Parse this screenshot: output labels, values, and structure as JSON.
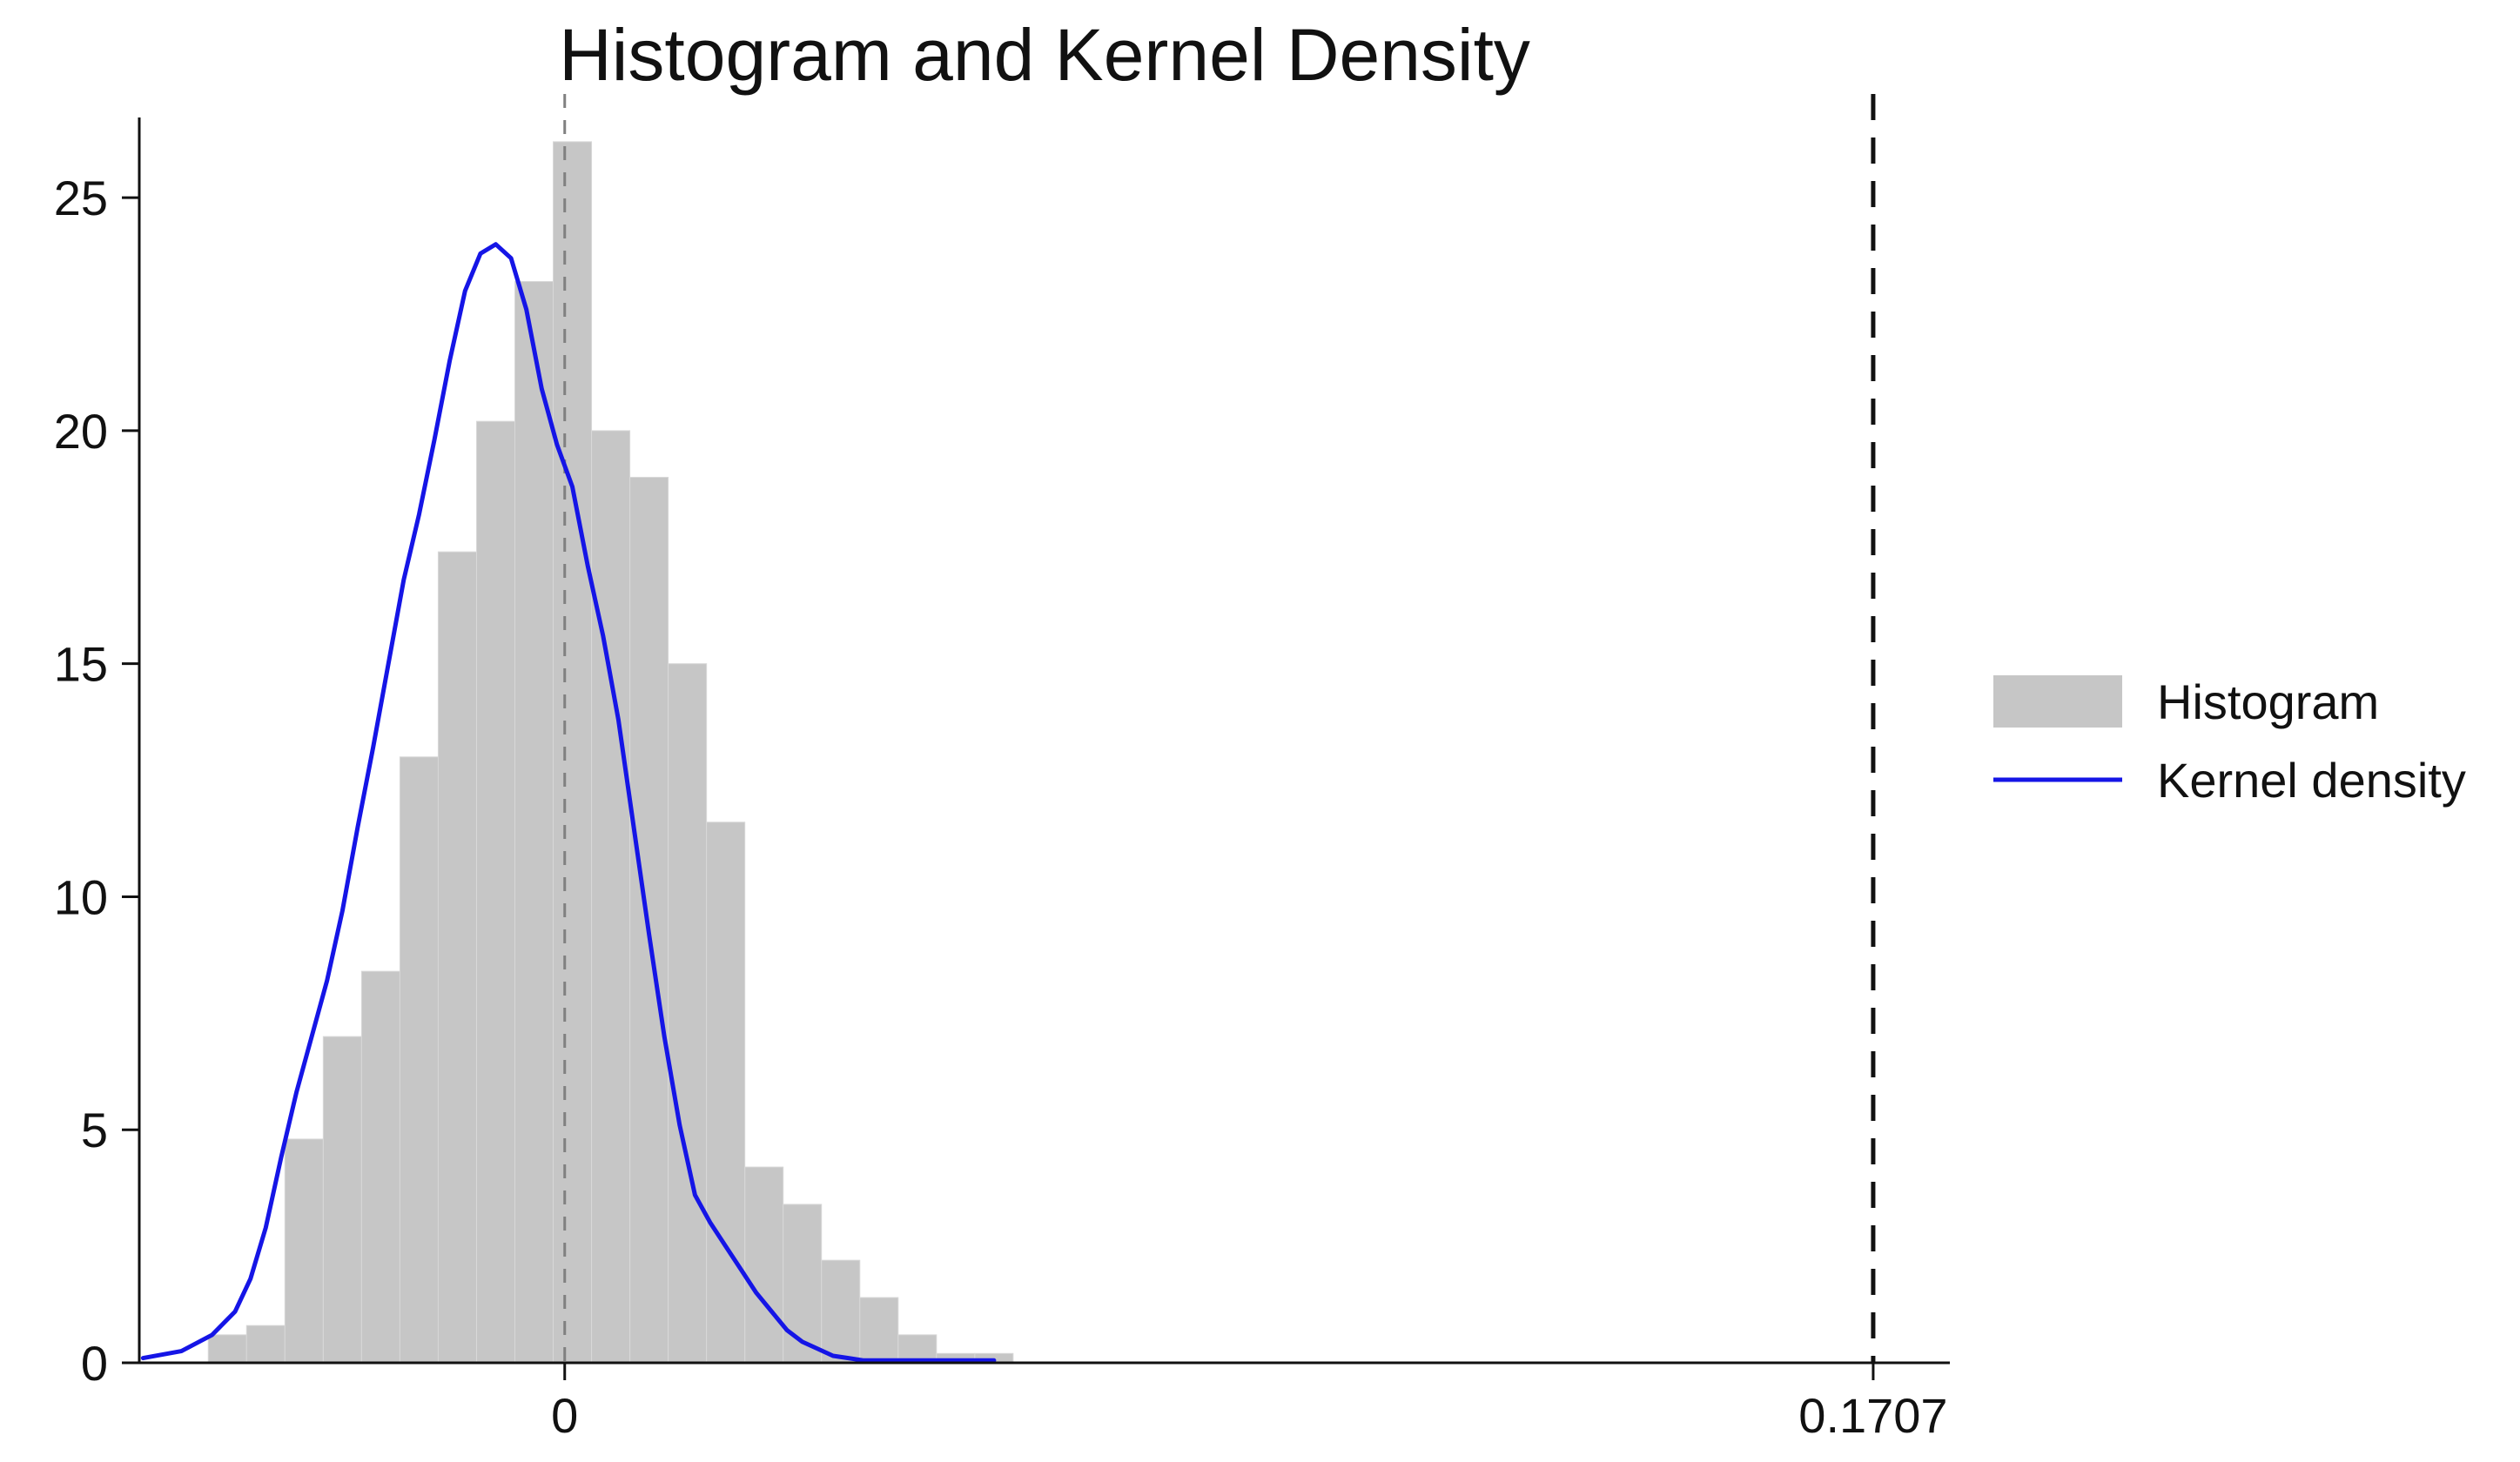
{
  "chart_data": {
    "type": "bar",
    "title": "Histogram and Kernel Density",
    "xlabel": "",
    "ylabel": "",
    "ylim": [
      0,
      27
    ],
    "xlim": [
      -0.0555,
      0.1807
    ],
    "grid": false,
    "legend_position": "right",
    "x_ticks": [
      {
        "value": 0,
        "label": "0"
      },
      {
        "value": 0.1707,
        "label": "0.1707"
      }
    ],
    "y_ticks": [
      {
        "value": 0,
        "label": "0"
      },
      {
        "value": 5,
        "label": "5"
      },
      {
        "value": 10,
        "label": "10"
      },
      {
        "value": 15,
        "label": "15"
      },
      {
        "value": 20,
        "label": "20"
      },
      {
        "value": 25,
        "label": "25"
      }
    ],
    "reference_lines": [
      {
        "x": 0,
        "style": "dashed",
        "color": "#808080"
      },
      {
        "x": 0.1707,
        "style": "dashed",
        "color": "#111111"
      }
    ],
    "series": [
      {
        "name": "Histogram",
        "kind": "histogram",
        "color": "#c6c6c6",
        "bin_edges": [
          -0.0465,
          -0.0415,
          -0.0365,
          -0.0315,
          -0.0265,
          -0.0215,
          -0.0165,
          -0.0115,
          -0.0065,
          -0.0015,
          0.0035,
          0.0085,
          0.0135,
          0.0185,
          0.0235,
          0.0285,
          0.0335,
          0.0385,
          0.0435,
          0.0485,
          0.0535,
          0.0585
        ],
        "values": [
          0.6,
          0.8,
          4.8,
          7.0,
          8.4,
          13.0,
          17.4,
          20.2,
          23.2,
          26.2,
          20.0,
          19.0,
          15.0,
          11.6,
          4.2,
          3.4,
          2.2,
          1.4,
          0.6,
          0.2,
          0.2
        ]
      },
      {
        "name": "Kernel density",
        "kind": "line",
        "color": "#1515e6",
        "x": [
          -0.055,
          -0.05,
          -0.046,
          -0.043,
          -0.041,
          -0.039,
          -0.037,
          -0.035,
          -0.033,
          -0.031,
          -0.029,
          -0.027,
          -0.025,
          -0.023,
          -0.021,
          -0.019,
          -0.017,
          -0.015,
          -0.013,
          -0.011,
          -0.009,
          -0.007,
          -0.005,
          -0.003,
          -0.001,
          0.001,
          0.003,
          0.005,
          0.007,
          0.009,
          0.011,
          0.013,
          0.015,
          0.017,
          0.019,
          0.021,
          0.023,
          0.025,
          0.027,
          0.029,
          0.031,
          0.033,
          0.035,
          0.037,
          0.039,
          0.041,
          0.043,
          0.046,
          0.05,
          0.053,
          0.056
        ],
        "y": [
          0.1,
          0.25,
          0.6,
          1.1,
          1.8,
          2.9,
          4.4,
          5.8,
          7.0,
          8.2,
          9.7,
          11.5,
          13.2,
          15.0,
          16.8,
          18.2,
          19.8,
          21.5,
          23.0,
          23.8,
          24.0,
          23.7,
          22.6,
          20.9,
          19.7,
          18.8,
          17.1,
          15.6,
          13.8,
          11.5,
          9.2,
          7.0,
          5.1,
          3.6,
          3.0,
          2.5,
          2.0,
          1.5,
          1.1,
          0.7,
          0.45,
          0.3,
          0.15,
          0.1,
          0.05,
          0.05,
          0.05,
          0.05,
          0.05,
          0.05,
          0.05
        ]
      }
    ]
  }
}
